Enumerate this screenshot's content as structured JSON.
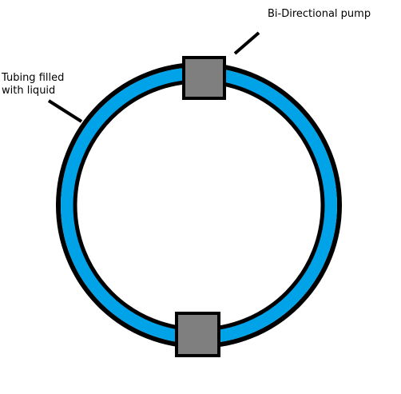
{
  "labels": {
    "pump": "Bi-Directional pump",
    "tubing_line1": "Tubing filled",
    "tubing_line2": "with liquid"
  },
  "colors": {
    "liquid": "#00A2E8",
    "outline": "#000000",
    "pump_fill": "#7F7F7F",
    "background": "#FFFFFF"
  },
  "components": {
    "tubing": "liquid-filled-tube-ring",
    "pumps": [
      "top-pump",
      "bottom-pump"
    ]
  }
}
